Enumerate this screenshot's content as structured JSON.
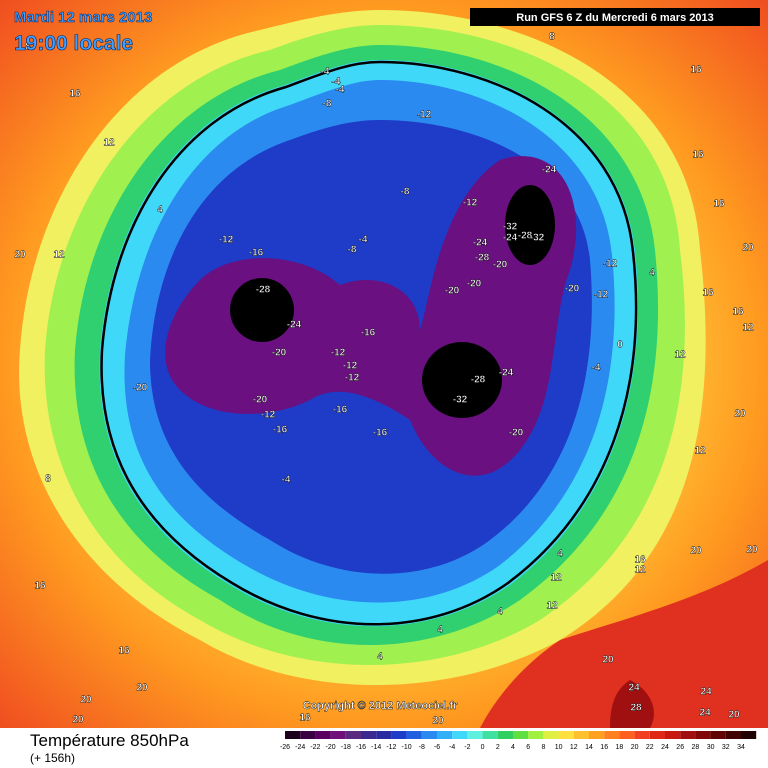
{
  "header": {
    "date": "Mardi 12 mars 2013",
    "time": "19:00 locale",
    "run": "Run GFS 6 Z du Mercredi 6 mars 2013"
  },
  "copyright": "Copyright © 2012 Meteociel.fr",
  "footer": {
    "title": "Température 850hPa",
    "lead": "(+ 156h)"
  },
  "colorbar": {
    "ticks": [
      -26,
      -24,
      -22,
      -20,
      -18,
      -16,
      -14,
      -12,
      -10,
      -8,
      -6,
      -4,
      -2,
      0,
      2,
      4,
      6,
      8,
      10,
      12,
      14,
      16,
      18,
      20,
      22,
      24,
      26,
      28,
      30,
      32,
      34
    ],
    "colors": [
      "#1a001a",
      "#3a0040",
      "#5a0060",
      "#70107a",
      "#5a2a80",
      "#3a2a90",
      "#2a2aa0",
      "#1e3cc8",
      "#2060e0",
      "#2a8af0",
      "#30b0f8",
      "#40d8f8",
      "#60f0e0",
      "#40e0a0",
      "#30d060",
      "#60e040",
      "#a0f040",
      "#e0f040",
      "#ffe040",
      "#ffc030",
      "#ffa020",
      "#ff8020",
      "#ff6020",
      "#f04020",
      "#e02818",
      "#c81810",
      "#a01010",
      "#800808",
      "#600404",
      "#400202",
      "#200000"
    ]
  },
  "map_labels": [
    -28,
    -24,
    -20,
    -20,
    -20,
    -12,
    -16,
    -12,
    -12,
    -12,
    -16,
    -16,
    -16,
    -28,
    -32,
    -24,
    -20,
    -32,
    -24,
    -28,
    -32,
    -24,
    -28,
    -20,
    -20,
    -20,
    -24,
    -20,
    -12,
    -12,
    -12,
    -12,
    -8,
    -8,
    -8,
    -4,
    -12,
    -16,
    -4,
    -4,
    -4,
    -4,
    16,
    12,
    8,
    4,
    16,
    8,
    16,
    16,
    20,
    16,
    16,
    12,
    12,
    20,
    12,
    20,
    20,
    16,
    12,
    12,
    12,
    20,
    24,
    28,
    24,
    24,
    20,
    20,
    20,
    20,
    16,
    16,
    20,
    12,
    8,
    16,
    20,
    4,
    4,
    4,
    4,
    4,
    0,
    -4
  ]
}
